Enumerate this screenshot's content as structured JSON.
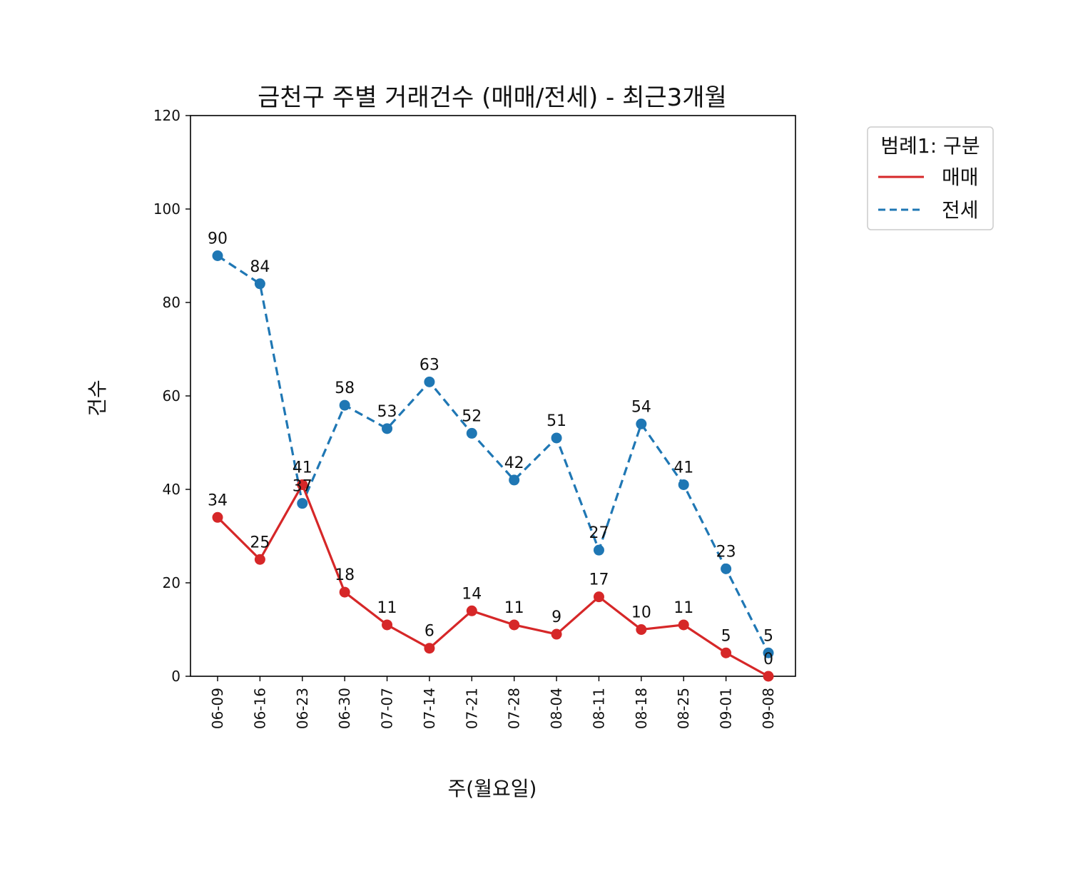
{
  "chart_data": {
    "type": "line",
    "title": "금천구 주별 거래건수 (매매/전세) - 최근3개월",
    "xlabel": "주(월요일)",
    "ylabel": "건수",
    "categories": [
      "06-09",
      "06-16",
      "06-23",
      "06-30",
      "07-07",
      "07-14",
      "07-21",
      "07-28",
      "08-04",
      "08-11",
      "08-18",
      "08-25",
      "09-01",
      "09-08"
    ],
    "ylim": [
      0,
      120
    ],
    "yticks": [
      0,
      20,
      40,
      60,
      80,
      100,
      120
    ],
    "grid": false,
    "legend": {
      "title": "범례1: 구분",
      "placement": "outside-top-right"
    },
    "series": [
      {
        "name": "매매",
        "color": "#d62728",
        "style": "solid",
        "values": [
          34,
          25,
          41,
          18,
          11,
          6,
          14,
          11,
          9,
          17,
          10,
          11,
          5,
          0
        ]
      },
      {
        "name": "전세",
        "color": "#1f77b4",
        "style": "dashed",
        "values": [
          90,
          84,
          37,
          58,
          53,
          63,
          52,
          42,
          51,
          27,
          54,
          41,
          23,
          5
        ]
      }
    ]
  }
}
